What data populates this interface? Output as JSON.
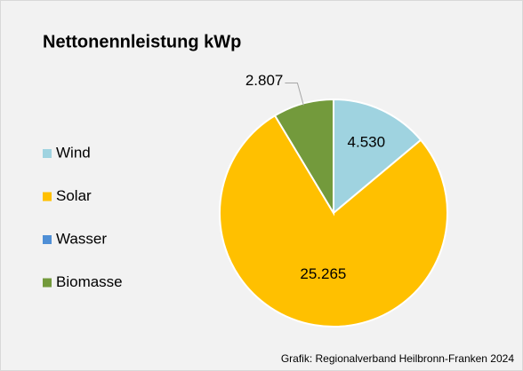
{
  "chart_data": {
    "type": "pie",
    "title": "Nettonennleistung kWp",
    "categories": [
      "Wind",
      "Solar",
      "Wasser",
      "Biomasse"
    ],
    "values": [
      4530,
      25265,
      0,
      2807
    ],
    "value_labels": [
      "4.530",
      "25.265",
      null,
      "2.807"
    ],
    "colors": [
      "#9fd3e0",
      "#ffc000",
      "#4f8fd6",
      "#739a3c"
    ],
    "legend": "left",
    "source": "Grafik: Regionalverband Heilbronn-Franken 2024"
  }
}
